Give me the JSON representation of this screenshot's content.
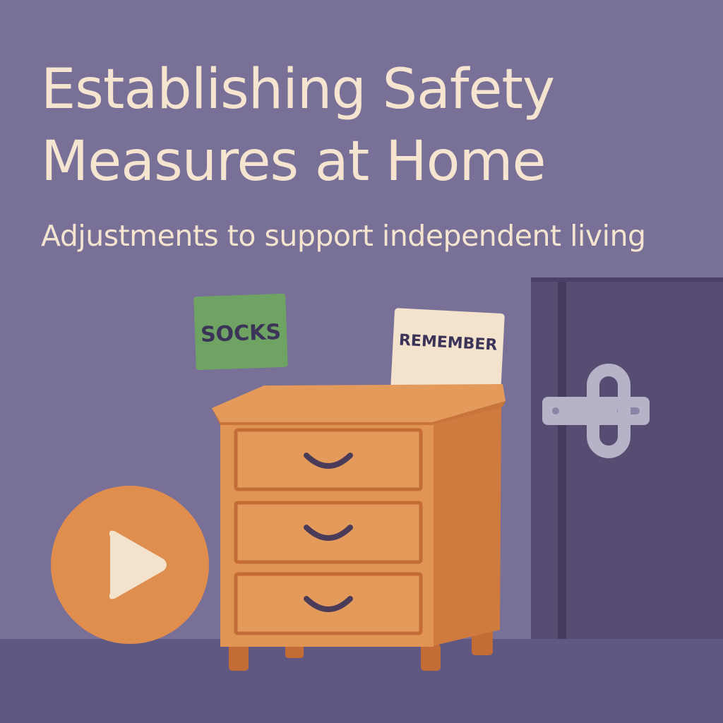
{
  "heading": {
    "title": "Establishing Safety Measures at Home",
    "subtitle": "Adjustments to support independent living"
  },
  "notes": {
    "socks": "SOCKS",
    "remember": "REMEMBER"
  },
  "icons": {
    "play": "play-icon"
  },
  "colors": {
    "background": "#787096",
    "floor": "#5f5882",
    "text": "#f5e4d0",
    "dresser": "#e09555",
    "dresser_dark": "#c36c35",
    "door": "#574c72",
    "latch": "#b6b2c8",
    "sticky_green": "#6ea364",
    "card": "#f3e3cd",
    "play_button": "#e08e4e"
  }
}
